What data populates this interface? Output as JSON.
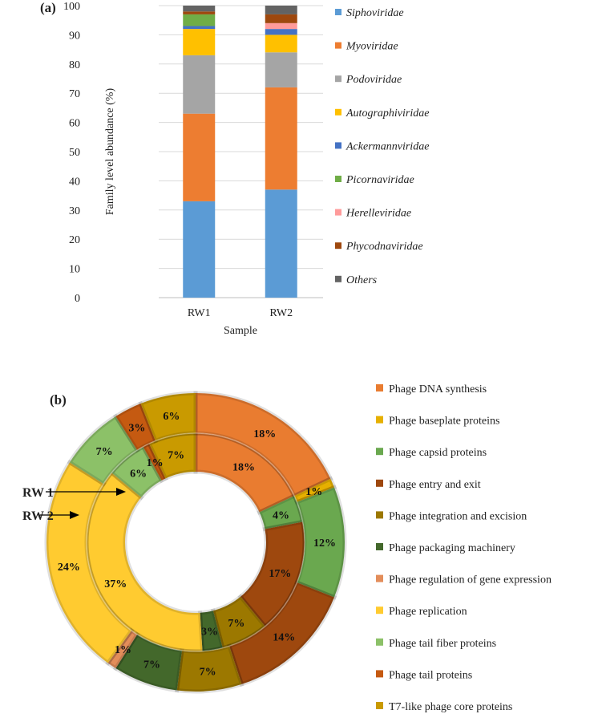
{
  "chart_data": [
    {
      "type": "bar",
      "stacked": true,
      "panel_label": "(a)",
      "title": "",
      "xlabel": "Sample",
      "ylabel": "Family level abundance (%)",
      "ylim": [
        0,
        100
      ],
      "yticks": [
        "0",
        "10",
        "20",
        "30",
        "40",
        "50",
        "60",
        "70",
        "80",
        "90",
        "100"
      ],
      "grid": true,
      "legend_position": "right",
      "categories": [
        "RW1",
        "RW2"
      ],
      "series": [
        {
          "name": "Siphoviridae",
          "color": "#5b9bd5",
          "values": [
            33,
            37
          ]
        },
        {
          "name": "Myoviridae",
          "color": "#ed7d31",
          "values": [
            30,
            35
          ]
        },
        {
          "name": "Podoviridae",
          "color": "#a5a5a5",
          "values": [
            20,
            12
          ]
        },
        {
          "name": "Autographiviridae",
          "color": "#ffc000",
          "values": [
            9,
            6
          ]
        },
        {
          "name": "Ackermannviridae",
          "color": "#4472c4",
          "values": [
            1,
            2
          ]
        },
        {
          "name": "Picornaviridae",
          "color": "#70ad47",
          "values": [
            4,
            0
          ]
        },
        {
          "name": "Herelleviridae",
          "color": "#ff9b9b",
          "values": [
            0,
            2
          ]
        },
        {
          "name": "Phycodnaviridae",
          "color": "#9e480e",
          "values": [
            1,
            3
          ]
        },
        {
          "name": "Others",
          "color": "#636363",
          "values": [
            2,
            3
          ]
        }
      ]
    },
    {
      "type": "pie",
      "donut": true,
      "panel_label": "(b)",
      "legend_position": "right",
      "ring_labels": {
        "inner": "RW 1",
        "outer": "RW 2"
      },
      "categories": [
        {
          "name": "Phage DNA synthesis",
          "color": "#e97c30"
        },
        {
          "name": "Phage baseplate proteins",
          "color": "#e6b000"
        },
        {
          "name": "Phage capsid proteins",
          "color": "#6aa84f"
        },
        {
          "name": "Phage entry and exit",
          "color": "#9e480e"
        },
        {
          "name": "Phage integration and excision",
          "color": "#9c7800"
        },
        {
          "name": "Phage packaging machinery",
          "color": "#43682b"
        },
        {
          "name": "Phage regulation of gene expression",
          "color": "#e38d5a"
        },
        {
          "name": "Phage replication",
          "color": "#ffcb30"
        },
        {
          "name": "Phage tail fiber proteins",
          "color": "#8cc168"
        },
        {
          "name": "Phage tail proteins",
          "color": "#c55a11"
        },
        {
          "name": "T7-like phage core proteins",
          "color": "#c99a00"
        }
      ],
      "series": [
        {
          "name": "RW 1",
          "ring": "inner",
          "values": [
            18,
            0,
            4,
            17,
            7,
            3,
            0,
            37,
            6,
            1,
            7
          ],
          "labels": [
            "18%",
            "",
            "4%",
            "17%",
            "7%",
            "3%",
            "",
            "37%",
            "6%",
            "1%",
            "7%"
          ]
        },
        {
          "name": "RW 2",
          "ring": "outer",
          "values": [
            18,
            1,
            12,
            14,
            7,
            7,
            1,
            24,
            7,
            3,
            6
          ],
          "labels": [
            "18%",
            "1%",
            "12%",
            "14%",
            "7%",
            "7%",
            "1%",
            "24%",
            "7%",
            "3%",
            "6%"
          ]
        }
      ]
    }
  ]
}
